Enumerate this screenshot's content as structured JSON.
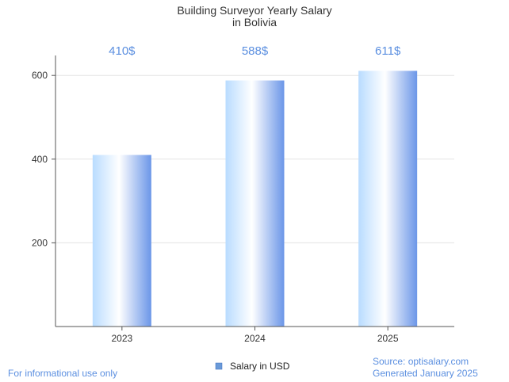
{
  "chart_data": {
    "type": "bar",
    "title": "Building Surveyor Yearly Salary",
    "subtitle": "in Bolivia",
    "categories": [
      "2023",
      "2024",
      "2025"
    ],
    "series": [
      {
        "name": "Salary in USD",
        "values": [
          410,
          588,
          611
        ]
      }
    ],
    "data_labels": [
      "410$",
      "588$",
      "611$"
    ],
    "y_ticks": [
      200,
      400,
      600
    ],
    "ylim": [
      0,
      650
    ],
    "xlabel": "",
    "ylabel": "",
    "grid": true,
    "legend_position": "bottom-center"
  },
  "footer": {
    "disclaimer": "For informational use only",
    "source": "Source: optisalary.com",
    "generated": "Generated January 2025"
  },
  "colors": {
    "bar_light": "#ddeeff",
    "bar_mid": "#ffffff",
    "bar_dark": "#6b96e8",
    "label": "#5b8fe0",
    "legend_swatch": "#6b9ad8"
  }
}
